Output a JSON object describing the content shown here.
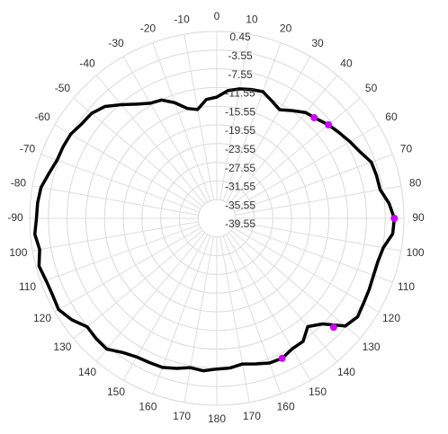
{
  "chart_data": {
    "type": "line",
    "subtype": "polar",
    "grid": true,
    "legend": "none",
    "angle_ticks": [
      "0",
      "10",
      "20",
      "30",
      "40",
      "50",
      "60",
      "70",
      "80",
      "90",
      "100",
      "110",
      "120",
      "130",
      "140",
      "150",
      "160",
      "170",
      "180",
      "170",
      "160",
      "150",
      "140",
      "130",
      "120",
      "110",
      "100",
      "-90",
      "-80",
      "-70",
      "-60",
      "-50",
      "-40",
      "-30",
      "-20",
      "-10"
    ],
    "radial_ticks": [
      "0.45",
      "-3.55",
      "-7.55",
      "-11.55",
      "-15.55",
      "-19.55",
      "-23.55",
      "-27.55",
      "-31.55",
      "-35.55",
      "-39.55"
    ],
    "rlim": [
      -39.55,
      0.45
    ],
    "series": [
      {
        "color": "#000000",
        "theta": [
          0,
          5,
          10,
          15,
          20,
          25,
          30,
          35,
          40,
          45,
          50,
          55,
          60,
          65,
          70,
          75,
          80,
          85,
          90,
          95,
          100,
          105,
          110,
          115,
          120,
          125,
          130,
          135,
          140,
          145,
          150,
          155,
          160,
          165,
          170,
          175,
          180,
          185,
          190,
          195,
          200,
          205,
          210,
          215,
          220,
          225,
          230,
          235,
          240,
          245,
          250,
          255,
          260,
          265,
          270,
          275,
          280,
          285,
          290,
          295,
          300,
          305,
          310,
          315,
          320,
          325,
          330,
          335,
          340,
          345,
          350,
          355,
          360
        ],
        "r": [
          -13.6,
          -12.1,
          -11.4,
          -11.0,
          -10.7,
          -11.8,
          -12.7,
          -11.4,
          -10.0,
          -9.4,
          -8.4,
          -7.6,
          -6.7,
          -5.8,
          -4.4,
          -4.2,
          -4.1,
          -2.6,
          -1.6,
          -1.8,
          -3.4,
          -3.9,
          -3.9,
          -3.6,
          -3.3,
          -2.8,
          -3.7,
          -7.6,
          -9.3,
          -7.4,
          -7.3,
          -6.5,
          -6.6,
          -7.3,
          -7.9,
          -7.4,
          -7.3,
          -6.8,
          -7.1,
          -6.3,
          -5.6,
          -5.5,
          -5.3,
          -4.5,
          -3.0,
          -3.1,
          -3.4,
          -1.7,
          -0.5,
          -0.8,
          -0.7,
          -0.2,
          -1.1,
          -0.5,
          -1.0,
          -1.1,
          -1.4,
          -2.4,
          -3.2,
          -3.3,
          -3.5,
          -4.3,
          -4.6,
          -5.7,
          -7.8,
          -9.7,
          -11.1,
          -11.6,
          -13.2,
          -15.2,
          -15.9,
          -14.0,
          -13.6
        ]
      }
    ],
    "markers": [
      {
        "theta": 44,
        "r": -9.6
      },
      {
        "theta": 50,
        "r": -8.4
      },
      {
        "theta": 90,
        "r": -1.6
      },
      {
        "theta": 133,
        "r": -5.4
      },
      {
        "theta": 155,
        "r": -6.5
      }
    ],
    "marker_color": "#d000ff"
  }
}
